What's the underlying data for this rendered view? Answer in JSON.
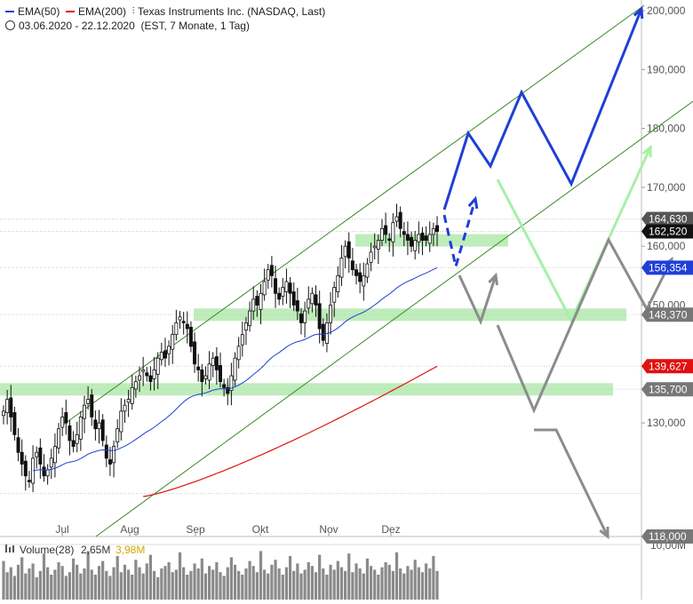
{
  "chart_data": {
    "type": "candlestick",
    "instrument": "Texas Instruments Inc. (NASDAQ, Last)",
    "date_range": "03.06.2020 - 22.12.2020",
    "chart_info": "(EST, 7 Monate, 1 Tag)",
    "legend": [
      {
        "label": "EMA(50)",
        "color": "#1f3fd6"
      },
      {
        "label": "EMA(200)",
        "color": "#e01010"
      }
    ],
    "x_labels": [
      "Jul",
      "Aug",
      "Sep",
      "Okt",
      "Nov",
      "Dez"
    ],
    "y_ticks": [
      "200,000",
      "190,000",
      "180,000",
      "170,000",
      "160,000",
      "150,000",
      "130,000",
      "10,00M"
    ],
    "ylim": [
      118,
      201
    ],
    "price_badges": [
      {
        "label": "164,630",
        "value": 164.63,
        "color": "#555555"
      },
      {
        "label": "162,520",
        "value": 162.52,
        "color": "#111111"
      },
      {
        "label": "156,354",
        "value": 156.354,
        "color": "#1f3fd6"
      },
      {
        "label": "148,370",
        "value": 148.37,
        "color": "#777777"
      },
      {
        "label": "139,627",
        "value": 139.627,
        "color": "#e01010"
      },
      {
        "label": "135,700",
        "value": 135.7,
        "color": "#777777"
      },
      {
        "label": "118,000",
        "value": 118.0,
        "color": "#777777"
      }
    ],
    "support_zones": [
      {
        "value": 161,
        "label": "161"
      },
      {
        "value": 148.37,
        "label": "148,370"
      },
      {
        "value": 135.7,
        "label": "135,700"
      }
    ],
    "ema50_end": 156.354,
    "ema200_end": 139.627,
    "closes": [
      132,
      134,
      131,
      128,
      125,
      123,
      121,
      120,
      124,
      125,
      123,
      121,
      122,
      124,
      126,
      129,
      131,
      130,
      127,
      126,
      128,
      131,
      133,
      134,
      131,
      129,
      130,
      127,
      124,
      123,
      126,
      129,
      132,
      133,
      134,
      136,
      137,
      138,
      139,
      138,
      137,
      139,
      141,
      142,
      141,
      143,
      145,
      147,
      148,
      147,
      146,
      143,
      140,
      139,
      137,
      138,
      140,
      141,
      139,
      137,
      136,
      135,
      138,
      141,
      143,
      145,
      147,
      149,
      151,
      150,
      152,
      154,
      156,
      155,
      152,
      151,
      153,
      154,
      152,
      150,
      149,
      147,
      149,
      151,
      152,
      150,
      146,
      144,
      147,
      150,
      153,
      155,
      158,
      160,
      158,
      156,
      155,
      154,
      155,
      157,
      159,
      160,
      161,
      163,
      162,
      161,
      164,
      165,
      163,
      162,
      161,
      160,
      161,
      162,
      161,
      161,
      162,
      163,
      162.5
    ],
    "volume_label": "Volume(28)",
    "volume_values": [
      "2,65M",
      "3,98M"
    ],
    "volume_bars": [
      3.1,
      2.2,
      2.6,
      1.9,
      2.8,
      3.4,
      2.1,
      2.5,
      2.9,
      1.8,
      2.3,
      3.7,
      2.6,
      2.0,
      2.4,
      3.0,
      2.7,
      1.9,
      2.2,
      3.3,
      2.8,
      2.1,
      2.5,
      3.9,
      2.4,
      2.0,
      2.7,
      3.1,
      2.3,
      1.9,
      2.6,
      3.5,
      2.2,
      2.8,
      2.4,
      2.0,
      3.2,
      2.6,
      2.1,
      2.9,
      3.6,
      2.3,
      1.8,
      2.5,
      2.7,
      3.0,
      2.2,
      2.4,
      3.8,
      2.6,
      2.0,
      2.3,
      2.9,
      2.5,
      3.3,
      2.1,
      2.7,
      2.4,
      3.0,
      2.2,
      1.9,
      2.6,
      3.4,
      2.8,
      2.3,
      2.0,
      2.5,
      3.1,
      2.7,
      2.2,
      3.9,
      2.4,
      2.1,
      2.8,
      3.2,
      2.5,
      2.0,
      2.6,
      3.5,
      2.3,
      2.9,
      2.1,
      2.4,
      3.0,
      2.7,
      2.2,
      3.6,
      2.5,
      2.0,
      2.8,
      2.4,
      3.1,
      2.6,
      2.3,
      3.7,
      2.2,
      2.9,
      2.5,
      2.1,
      3.3,
      2.7,
      2.4,
      2.0,
      2.6,
      3.0,
      2.8,
      2.3,
      3.8,
      2.5,
      2.1,
      2.7,
      2.4,
      3.2,
      2.6,
      2.2,
      2.9,
      2.5,
      3.5,
      2.3
    ],
    "volume_max": 4.0
  }
}
